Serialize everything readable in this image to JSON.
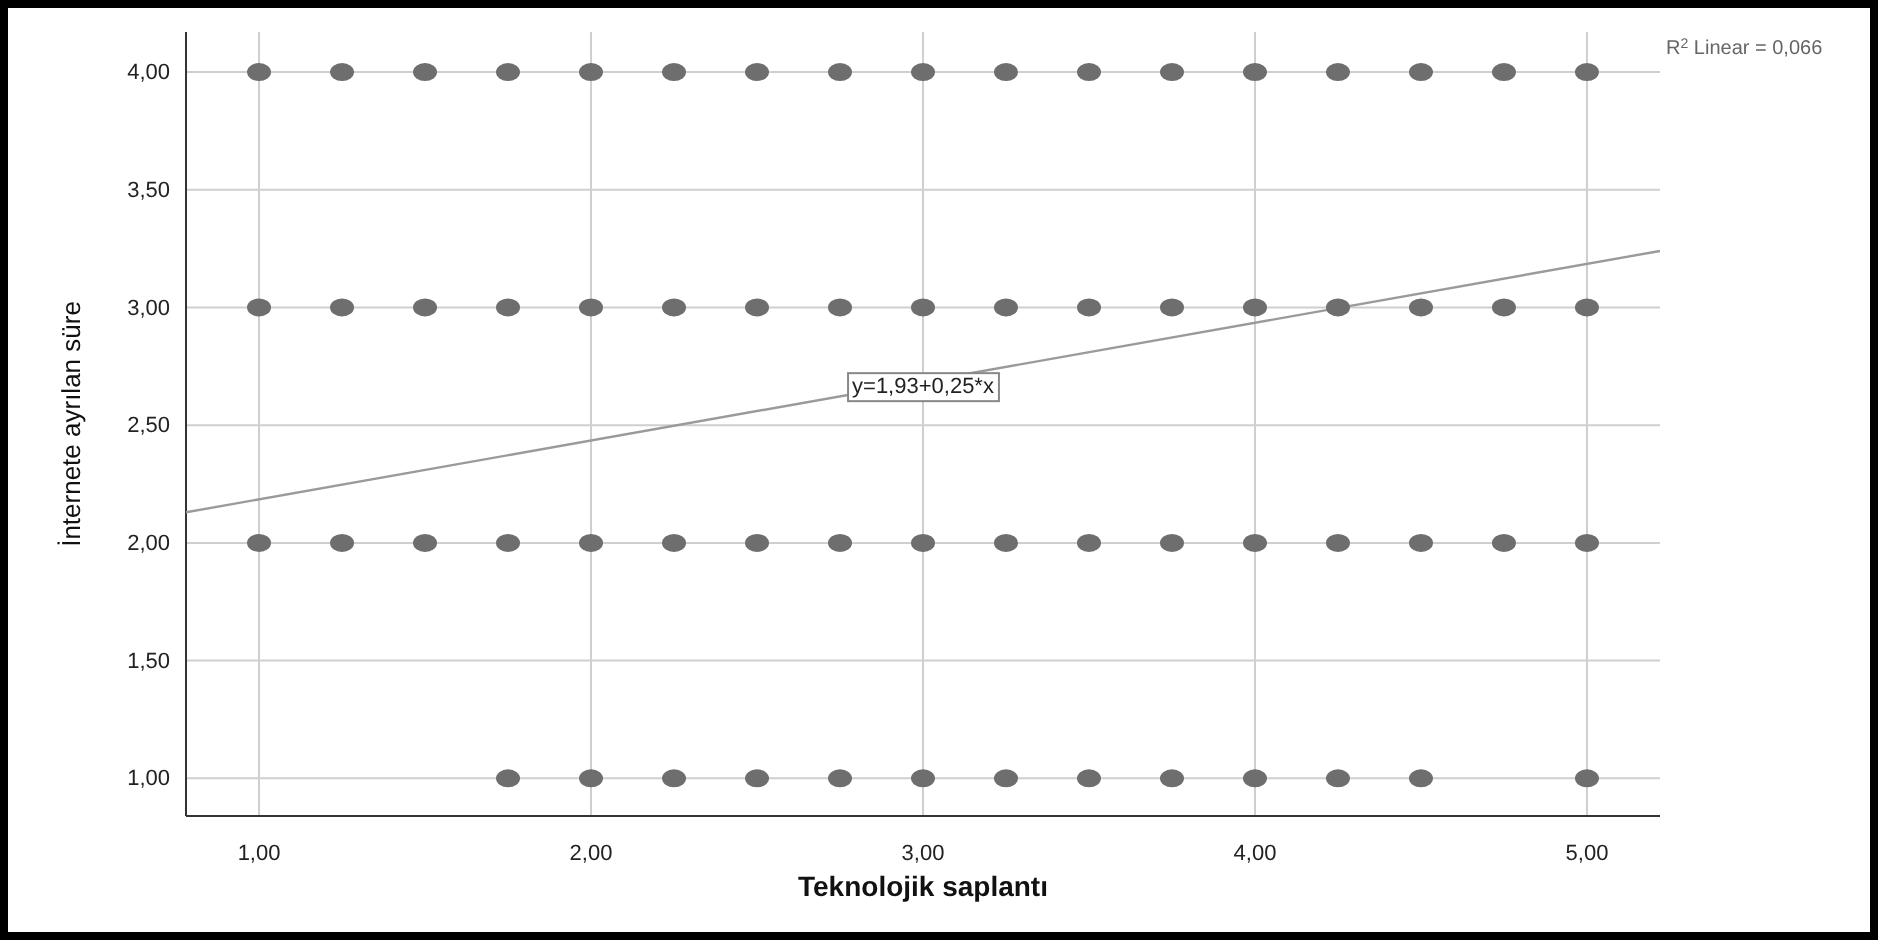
{
  "chart_data": {
    "type": "scatter",
    "xlabel": "Teknolojik saplantı",
    "ylabel": "İnternete ayrılan süre",
    "xlim": [
      0.78,
      5.22
    ],
    "ylim": [
      0.84,
      4.17
    ],
    "xticks": [
      {
        "value": 1,
        "label": "1,00"
      },
      {
        "value": 2,
        "label": "2,00"
      },
      {
        "value": 3,
        "label": "3,00"
      },
      {
        "value": 4,
        "label": "4,00"
      },
      {
        "value": 5,
        "label": "5,00"
      }
    ],
    "yticks": [
      {
        "value": 1,
        "label": "1,00"
      },
      {
        "value": 1.5,
        "label": "1,50"
      },
      {
        "value": 2,
        "label": "2,00"
      },
      {
        "value": 2.5,
        "label": "2,50"
      },
      {
        "value": 3,
        "label": "3,00"
      },
      {
        "value": 3.5,
        "label": "3,50"
      },
      {
        "value": 4,
        "label": "4,00"
      }
    ],
    "grid": true,
    "marker": "circle",
    "series": [
      {
        "color": "#6e6e6e",
        "x": [
          1,
          1.25,
          1.5,
          1.75,
          2,
          2.25,
          2.5,
          2.75,
          3,
          3.25,
          3.5,
          3.75,
          4,
          4.25,
          4.5,
          4.75,
          5,
          1,
          1.25,
          1.5,
          1.75,
          2,
          2.25,
          2.5,
          2.75,
          3,
          3.25,
          3.5,
          3.75,
          4,
          4.25,
          4.5,
          4.75,
          5,
          1,
          1.25,
          1.5,
          1.75,
          2,
          2.25,
          2.5,
          2.75,
          3,
          3.25,
          3.5,
          3.75,
          4,
          4.25,
          4.5,
          4.75,
          5,
          1.75,
          2,
          2.25,
          2.5,
          2.75,
          3,
          3.25,
          3.5,
          3.75,
          4,
          4.25,
          4.5,
          5
        ],
        "values": [
          4,
          4,
          4,
          4,
          4,
          4,
          4,
          4,
          4,
          4,
          4,
          4,
          4,
          4,
          4,
          4,
          4,
          3,
          3,
          3,
          3,
          3,
          3,
          3,
          3,
          3,
          3,
          3,
          3,
          3,
          3,
          3,
          3,
          3,
          2,
          2,
          2,
          2,
          2,
          2,
          2,
          2,
          2,
          2,
          2,
          2,
          2,
          2,
          2,
          2,
          2,
          1,
          1,
          1,
          1,
          1,
          1,
          1,
          1,
          1,
          1,
          1,
          1,
          1
        ]
      },
      {
        "type": "line",
        "color": "#9a9a9a",
        "marker": "none",
        "line_style": "solid",
        "x": [
          0.78,
          5.22
        ],
        "values": [
          2.13,
          3.24
        ]
      }
    ],
    "annotations": [
      {
        "text": "y=1,93+0,25*x",
        "x": 3.0,
        "y": 2.67
      },
      "R$^{2}$ Linear = 0,066"
    ]
  }
}
